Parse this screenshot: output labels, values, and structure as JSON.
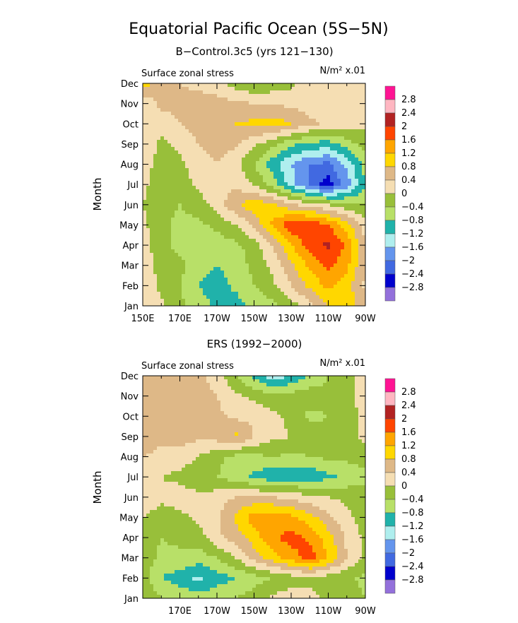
{
  "title": "Equatorial Pacific Ocean (5S−5N)",
  "chart_data": [
    {
      "type": "heatmap",
      "subtitle": "B−Control.3c5 (yrs 121−130)",
      "left_label": "Surface zonal stress",
      "units": "N/m² x.01",
      "ylabel": "Month",
      "xlim": [
        150,
        270
      ],
      "x_ticks": [
        150,
        170,
        190,
        210,
        230,
        250,
        270
      ],
      "x_tick_labels": [
        "150E",
        "170E",
        "170W",
        "150W",
        "130W",
        "110W",
        "90W"
      ],
      "y_ticks": [
        "Jan",
        "Feb",
        "Mar",
        "Apr",
        "May",
        "Jun",
        "Jul",
        "Aug",
        "Sep",
        "Oct",
        "Nov",
        "Dec"
      ],
      "grid": [
        [
          0.3,
          0.1,
          -0.3,
          -0.6,
          -0.9,
          -1.0,
          -0.7,
          -0.5,
          -0.2,
          0.3,
          0.8,
          1.1,
          0.5
        ],
        [
          0.3,
          -0.1,
          -0.4,
          -0.8,
          -1.0,
          -0.7,
          -0.4,
          -0.1,
          0.4,
          0.9,
          1.3,
          1.0,
          0.3
        ],
        [
          0.3,
          -0.2,
          -0.3,
          -0.6,
          -0.8,
          -0.6,
          -0.3,
          0.1,
          0.7,
          1.3,
          1.7,
          1.3,
          0.4
        ],
        [
          0.2,
          -0.3,
          -0.5,
          -0.6,
          -0.6,
          -0.5,
          -0.2,
          0.4,
          1.2,
          1.8,
          2.1,
          1.5,
          0.4
        ],
        [
          0.1,
          -0.3,
          -0.5,
          -0.5,
          -0.3,
          0.0,
          0.5,
          1.3,
          1.9,
          2.0,
          1.6,
          1.0,
          0.2
        ],
        [
          0.0,
          -0.3,
          -0.4,
          -0.2,
          0.2,
          0.7,
          1.1,
          0.9,
          0.5,
          0.2,
          0.0,
          -0.3,
          -0.4
        ],
        [
          0.1,
          -0.2,
          -0.2,
          0.1,
          0.3,
          0.3,
          0.0,
          -0.6,
          -1.4,
          -2.1,
          -2.6,
          -1.8,
          -0.8
        ],
        [
          0.2,
          -0.2,
          -0.1,
          0.2,
          0.4,
          0.1,
          -0.4,
          -1.0,
          -1.6,
          -2.0,
          -2.1,
          -1.5,
          -0.6
        ],
        [
          0.4,
          -0.1,
          0.1,
          0.4,
          0.6,
          0.5,
          0.1,
          -0.3,
          -0.7,
          -0.9,
          -1.0,
          -0.6,
          -0.2
        ],
        [
          0.2,
          0.2,
          0.4,
          0.6,
          0.7,
          0.8,
          0.9,
          1.0,
          0.8,
          0.5,
          0.3,
          0.2,
          0.1
        ],
        [
          0.1,
          0.5,
          0.5,
          0.6,
          0.6,
          0.5,
          0.4,
          0.4,
          0.3,
          0.2,
          0.2,
          0.3,
          0.2
        ],
        [
          1.0,
          0.5,
          0.4,
          0.3,
          0.1,
          -0.2,
          -0.4,
          -0.3,
          -0.1,
          0.2,
          0.4,
          0.2,
          0.3
        ]
      ]
    },
    {
      "type": "heatmap",
      "subtitle": "ERS (1992−2000)",
      "left_label": "Surface zonal stress",
      "units": "N/m² x.01",
      "ylabel": "Month",
      "xlim": [
        150,
        270
      ],
      "x_ticks": [
        170,
        190,
        210,
        230,
        250,
        270
      ],
      "x_tick_labels": [
        "170E",
        "170W",
        "150W",
        "130W",
        "110W",
        "90W"
      ],
      "y_ticks": [
        "Jan",
        "Feb",
        "Mar",
        "Apr",
        "May",
        "Jun",
        "Jul",
        "Aug",
        "Sep",
        "Oct",
        "Nov",
        "Dec"
      ],
      "grid": [
        [
          -0.1,
          -0.4,
          -0.5,
          -0.6,
          -0.5,
          -0.4,
          -0.2,
          0.1,
          0.2,
          0.1,
          -0.1,
          -0.2,
          -0.4
        ],
        [
          -0.2,
          -0.8,
          -1.0,
          -1.3,
          -1.0,
          -0.8,
          -0.6,
          -0.4,
          -0.2,
          -0.1,
          -0.2,
          -0.3,
          -0.5
        ],
        [
          -0.2,
          -0.5,
          -0.5,
          -0.6,
          -0.4,
          0.0,
          0.6,
          1.0,
          1.4,
          1.8,
          1.2,
          0.4,
          -0.1
        ],
        [
          -0.1,
          -0.4,
          -0.3,
          -0.2,
          0.3,
          0.6,
          1.0,
          1.5,
          1.8,
          1.5,
          1.0,
          0.3,
          -0.1
        ],
        [
          0.0,
          -0.2,
          -0.1,
          0.1,
          0.3,
          0.9,
          1.4,
          1.5,
          1.3,
          1.0,
          0.5,
          0.1,
          -0.2
        ],
        [
          0.3,
          0.1,
          0.2,
          0.1,
          0.2,
          0.4,
          0.5,
          0.4,
          0.3,
          0.1,
          0.0,
          -0.1,
          -0.3
        ],
        [
          0.2,
          0.0,
          -0.1,
          -0.3,
          -0.4,
          -0.6,
          -0.9,
          -1.1,
          -1.0,
          -1.1,
          -0.9,
          -0.7,
          -0.5
        ],
        [
          0.4,
          0.3,
          0.2,
          0.0,
          -0.3,
          -0.5,
          -0.5,
          -0.4,
          -0.5,
          -0.4,
          -0.3,
          -0.3,
          -0.2
        ],
        [
          0.6,
          0.5,
          0.6,
          0.5,
          0.6,
          0.9,
          0.4,
          0.1,
          0.0,
          -0.2,
          -0.3,
          -0.1,
          0.1
        ],
        [
          0.4,
          0.6,
          0.5,
          0.4,
          0.5,
          0.3,
          0.3,
          0.1,
          -0.1,
          -0.5,
          -0.4,
          -0.2,
          0.1
        ],
        [
          0.5,
          0.4,
          0.5,
          0.6,
          0.4,
          0.1,
          -0.1,
          -0.3,
          -0.2,
          -0.2,
          -0.3,
          -0.1,
          0.2
        ],
        [
          0.8,
          0.6,
          0.4,
          0.5,
          0.2,
          -0.4,
          -0.9,
          -1.5,
          -1.2,
          -0.7,
          -0.4,
          -0.2,
          0.3
        ]
      ]
    }
  ],
  "colorbar": {
    "labels": [
      "2.8",
      "2.4",
      "2",
      "1.6",
      "1.2",
      "0.8",
      "0.4",
      "0",
      "−0.4",
      "−0.8",
      "−1.2",
      "−1.6",
      "−2",
      "−2.4",
      "−2.8"
    ],
    "bounds": [
      -2.8,
      -2.4,
      -2.0,
      -1.6,
      -1.2,
      -0.8,
      -0.4,
      0.0,
      0.4,
      0.8,
      1.2,
      1.6,
      2.0,
      2.4,
      2.8
    ],
    "colors_top_to_bottom": [
      "#ff1493",
      "#ffb6c1",
      "#b22222",
      "#ff4500",
      "#ffa500",
      "#ffd700",
      "#deb887",
      "#f5deb3",
      "#98bf3a",
      "#b8e068",
      "#20b2aa",
      "#afeeee",
      "#6495ed",
      "#4169e1",
      "#0000cd",
      "#9370db"
    ]
  }
}
